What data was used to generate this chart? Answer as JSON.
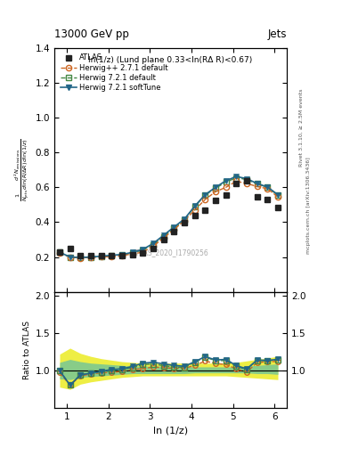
{
  "title_top": "13000 GeV pp",
  "title_right": "Jets",
  "panel_title": "ln(1/z) (Lund plane 0.33<ln(RΔ R)<0.67)",
  "right_label_top": "Rivet 3.1.10, ≥ 2.5M events",
  "right_label_bottom": "mcplots.cern.ch [arXiv:1306.3436]",
  "watermark": "ATLAS_2020_I1790256",
  "ylabel_main": "$\\frac{1}{N_\\mathrm{jets}}\\frac{d^2 N_\\mathrm{emissions}}{d\\ln(R/\\Delta R)\\,d\\ln(1/z)}$",
  "ylabel_ratio": "Ratio to ATLAS",
  "xlabel": "ln (1/z)",
  "xlim": [
    0.7,
    6.3
  ],
  "ylim_main": [
    0.0,
    1.4
  ],
  "ylim_ratio": [
    0.5,
    2.05
  ],
  "yticks_main": [
    0.2,
    0.4,
    0.6,
    0.8,
    1.0,
    1.2,
    1.4
  ],
  "yticks_ratio": [
    1.0,
    1.5,
    2.0
  ],
  "xticks": [
    1,
    2,
    3,
    4,
    5,
    6
  ],
  "atlas_x": [
    0.83,
    1.08,
    1.33,
    1.58,
    1.83,
    2.08,
    2.33,
    2.58,
    2.83,
    3.08,
    3.33,
    3.58,
    3.83,
    4.08,
    4.33,
    4.58,
    4.83,
    5.08,
    5.33,
    5.58,
    5.83,
    6.08
  ],
  "atlas_y": [
    0.228,
    0.248,
    0.21,
    0.207,
    0.207,
    0.207,
    0.21,
    0.215,
    0.222,
    0.25,
    0.298,
    0.348,
    0.395,
    0.44,
    0.47,
    0.525,
    0.555,
    0.62,
    0.635,
    0.545,
    0.53,
    0.485
  ],
  "herwig_pp_x": [
    0.83,
    1.08,
    1.33,
    1.58,
    1.83,
    2.08,
    2.33,
    2.58,
    2.83,
    3.08,
    3.33,
    3.58,
    3.83,
    4.08,
    4.33,
    4.58,
    4.83,
    5.08,
    5.33,
    5.58,
    5.83,
    6.08
  ],
  "herwig_pp_y": [
    0.222,
    0.2,
    0.195,
    0.198,
    0.201,
    0.202,
    0.208,
    0.218,
    0.228,
    0.262,
    0.31,
    0.358,
    0.408,
    0.47,
    0.53,
    0.575,
    0.6,
    0.635,
    0.622,
    0.605,
    0.592,
    0.545
  ],
  "herwig721_x": [
    0.83,
    1.08,
    1.33,
    1.58,
    1.83,
    2.08,
    2.33,
    2.58,
    2.83,
    3.08,
    3.33,
    3.58,
    3.83,
    4.08,
    4.33,
    4.58,
    4.83,
    5.08,
    5.33,
    5.58,
    5.83,
    6.08
  ],
  "herwig721_y": [
    0.228,
    0.2,
    0.198,
    0.2,
    0.203,
    0.207,
    0.213,
    0.224,
    0.24,
    0.272,
    0.318,
    0.365,
    0.412,
    0.49,
    0.555,
    0.595,
    0.63,
    0.655,
    0.645,
    0.62,
    0.6,
    0.555
  ],
  "herwig721st_x": [
    0.83,
    1.08,
    1.33,
    1.58,
    1.83,
    2.08,
    2.33,
    2.58,
    2.83,
    3.08,
    3.33,
    3.58,
    3.83,
    4.08,
    4.33,
    4.58,
    4.83,
    5.08,
    5.33,
    5.58,
    5.83,
    6.08
  ],
  "herwig721st_y": [
    0.228,
    0.2,
    0.198,
    0.2,
    0.205,
    0.21,
    0.215,
    0.227,
    0.244,
    0.278,
    0.325,
    0.372,
    0.418,
    0.492,
    0.558,
    0.6,
    0.638,
    0.662,
    0.65,
    0.622,
    0.602,
    0.558
  ],
  "band_yellow_lo": [
    0.78,
    0.75,
    0.82,
    0.85,
    0.87,
    0.89,
    0.91,
    0.92,
    0.93,
    0.93,
    0.93,
    0.93,
    0.93,
    0.93,
    0.93,
    0.93,
    0.93,
    0.92,
    0.91,
    0.9,
    0.89,
    0.88
  ],
  "band_yellow_hi": [
    1.22,
    1.3,
    1.23,
    1.19,
    1.16,
    1.14,
    1.12,
    1.11,
    1.1,
    1.1,
    1.1,
    1.1,
    1.1,
    1.1,
    1.1,
    1.1,
    1.1,
    1.11,
    1.13,
    1.15,
    1.17,
    1.19
  ],
  "band_green_lo": [
    0.89,
    0.88,
    0.91,
    0.92,
    0.93,
    0.94,
    0.95,
    0.96,
    0.96,
    0.96,
    0.96,
    0.96,
    0.96,
    0.97,
    0.97,
    0.97,
    0.97,
    0.97,
    0.97,
    0.96,
    0.96,
    0.95
  ],
  "band_green_hi": [
    1.11,
    1.15,
    1.12,
    1.1,
    1.09,
    1.08,
    1.07,
    1.06,
    1.06,
    1.06,
    1.06,
    1.06,
    1.06,
    1.05,
    1.05,
    1.05,
    1.05,
    1.05,
    1.06,
    1.07,
    1.08,
    1.09
  ],
  "color_atlas": "#222222",
  "color_herwig_pp": "#cc6622",
  "color_herwig721": "#448844",
  "color_herwig721st": "#226688",
  "color_yellow": "#eeee44",
  "color_green": "#88cc88"
}
